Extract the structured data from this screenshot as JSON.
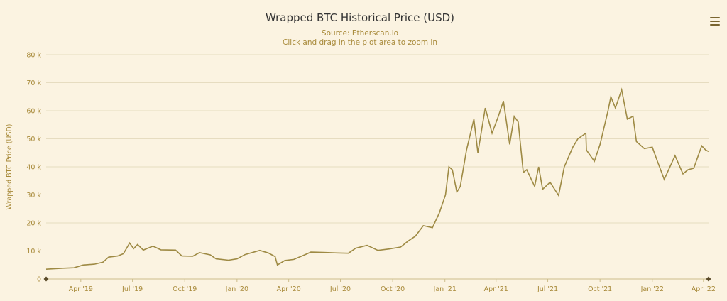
{
  "chart_data": {
    "type": "line",
    "title": "Wrapped BTC Historical Price (USD)",
    "subtitle": "Source: Etherscan.io",
    "hint": "Click and drag in the plot area to zoom in",
    "xlabel": "",
    "ylabel": "Wrapped BTC Price (USD)",
    "ylim": [
      0,
      80000
    ],
    "xlim": [
      "2019-01-30",
      "2022-04-10"
    ],
    "yticks": [
      {
        "value": 0,
        "label": "0"
      },
      {
        "value": 10000,
        "label": "10 k"
      },
      {
        "value": 20000,
        "label": "20 k"
      },
      {
        "value": 30000,
        "label": "30 k"
      },
      {
        "value": 40000,
        "label": "40 k"
      },
      {
        "value": 50000,
        "label": "50 k"
      },
      {
        "value": 60000,
        "label": "60 k"
      },
      {
        "value": 70000,
        "label": "70 k"
      },
      {
        "value": 80000,
        "label": "80 k"
      }
    ],
    "xticks": [
      {
        "date": "2019-04-01",
        "label": "Apr '19"
      },
      {
        "date": "2019-07-01",
        "label": "Jul '19"
      },
      {
        "date": "2019-10-01",
        "label": "Oct '19"
      },
      {
        "date": "2020-01-01",
        "label": "Jan '20"
      },
      {
        "date": "2020-04-01",
        "label": "Apr '20"
      },
      {
        "date": "2020-07-01",
        "label": "Jul '20"
      },
      {
        "date": "2020-10-01",
        "label": "Oct '20"
      },
      {
        "date": "2021-01-01",
        "label": "Jan '21"
      },
      {
        "date": "2021-04-01",
        "label": "Apr '21"
      },
      {
        "date": "2021-07-01",
        "label": "Jul '21"
      },
      {
        "date": "2021-10-01",
        "label": "Oct '21"
      },
      {
        "date": "2022-01-01",
        "label": "Jan '22"
      },
      {
        "date": "2022-04-01",
        "label": "Apr '22"
      }
    ],
    "grid": true,
    "legend": "none",
    "line_color": "#9e8a44",
    "series": [
      {
        "points": [
          [
            "2019-01-30",
            3500
          ],
          [
            "2019-02-15",
            3700
          ],
          [
            "2019-03-01",
            3850
          ],
          [
            "2019-03-20",
            4000
          ],
          [
            "2019-04-05",
            5000
          ],
          [
            "2019-04-25",
            5300
          ],
          [
            "2019-05-10",
            6000
          ],
          [
            "2019-05-20",
            7800
          ],
          [
            "2019-06-05",
            8200
          ],
          [
            "2019-06-15",
            9000
          ],
          [
            "2019-06-26",
            12800
          ],
          [
            "2019-07-03",
            10800
          ],
          [
            "2019-07-10",
            12300
          ],
          [
            "2019-07-20",
            10300
          ],
          [
            "2019-08-06",
            11700
          ],
          [
            "2019-08-20",
            10400
          ],
          [
            "2019-09-15",
            10300
          ],
          [
            "2019-09-26",
            8200
          ],
          [
            "2019-10-15",
            8100
          ],
          [
            "2019-10-27",
            9400
          ],
          [
            "2019-11-15",
            8600
          ],
          [
            "2019-11-25",
            7200
          ],
          [
            "2019-12-17",
            6700
          ],
          [
            "2020-01-01",
            7200
          ],
          [
            "2020-01-15",
            8700
          ],
          [
            "2020-02-10",
            10200
          ],
          [
            "2020-02-25",
            9300
          ],
          [
            "2020-03-08",
            8000
          ],
          [
            "2020-03-12",
            5000
          ],
          [
            "2020-03-25",
            6600
          ],
          [
            "2020-04-10",
            7000
          ],
          [
            "2020-04-30",
            8700
          ],
          [
            "2020-05-10",
            9600
          ],
          [
            "2020-06-01",
            9500
          ],
          [
            "2020-06-25",
            9300
          ],
          [
            "2020-07-15",
            9200
          ],
          [
            "2020-07-28",
            11000
          ],
          [
            "2020-08-17",
            12000
          ],
          [
            "2020-09-05",
            10200
          ],
          [
            "2020-09-25",
            10700
          ],
          [
            "2020-10-15",
            11400
          ],
          [
            "2020-10-28",
            13500
          ],
          [
            "2020-11-10",
            15300
          ],
          [
            "2020-11-24",
            19000
          ],
          [
            "2020-12-10",
            18300
          ],
          [
            "2020-12-22",
            23500
          ],
          [
            "2021-01-02",
            30000
          ],
          [
            "2021-01-08",
            40000
          ],
          [
            "2021-01-14",
            39000
          ],
          [
            "2021-01-22",
            31000
          ],
          [
            "2021-01-28",
            33000
          ],
          [
            "2021-02-08",
            46000
          ],
          [
            "2021-02-21",
            57000
          ],
          [
            "2021-02-28",
            45000
          ],
          [
            "2021-03-13",
            61000
          ],
          [
            "2021-03-25",
            52000
          ],
          [
            "2021-04-05",
            58000
          ],
          [
            "2021-04-14",
            63500
          ],
          [
            "2021-04-25",
            48000
          ],
          [
            "2021-05-03",
            58000
          ],
          [
            "2021-05-10",
            56000
          ],
          [
            "2021-05-19",
            38000
          ],
          [
            "2021-05-25",
            39000
          ],
          [
            "2021-06-08",
            33000
          ],
          [
            "2021-06-15",
            40000
          ],
          [
            "2021-06-22",
            32000
          ],
          [
            "2021-07-05",
            34500
          ],
          [
            "2021-07-20",
            29800
          ],
          [
            "2021-07-30",
            40000
          ],
          [
            "2021-08-14",
            47000
          ],
          [
            "2021-08-23",
            50000
          ],
          [
            "2021-09-06",
            52000
          ],
          [
            "2021-09-07",
            46000
          ],
          [
            "2021-09-21",
            42000
          ],
          [
            "2021-10-01",
            48000
          ],
          [
            "2021-10-15",
            60000
          ],
          [
            "2021-10-20",
            65000
          ],
          [
            "2021-10-28",
            61000
          ],
          [
            "2021-11-08",
            67500
          ],
          [
            "2021-11-18",
            57000
          ],
          [
            "2021-11-28",
            58000
          ],
          [
            "2021-12-04",
            49000
          ],
          [
            "2021-12-18",
            46500
          ],
          [
            "2022-01-01",
            47000
          ],
          [
            "2022-01-10",
            42000
          ],
          [
            "2022-01-22",
            35500
          ],
          [
            "2022-02-10",
            44000
          ],
          [
            "2022-02-24",
            37500
          ],
          [
            "2022-03-05",
            39000
          ],
          [
            "2022-03-15",
            39500
          ],
          [
            "2022-03-29",
            47500
          ],
          [
            "2022-04-05",
            46000
          ],
          [
            "2022-04-10",
            45500
          ]
        ]
      }
    ]
  }
}
